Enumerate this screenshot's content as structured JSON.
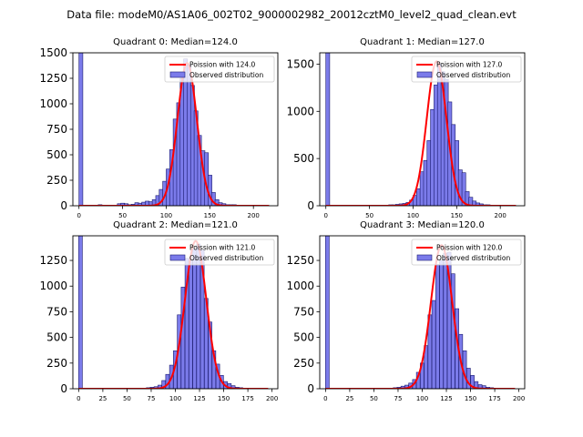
{
  "figure": {
    "suptitle": "Data file: modeM0/AS1A06_002T02_9000002982_20012cztM0_level2_quad_clean.evt"
  },
  "colors": {
    "bar_fill": "#7b7bea",
    "bar_edge": "#1a1a70",
    "curve": "#ff0000",
    "axis": "#000000"
  },
  "chart_data": [
    {
      "type": "bar",
      "title": "Quadrant 0: Median=124.0",
      "legend": [
        "Poission with 124.0",
        "Observed distribution"
      ],
      "legend_loc": "top-right",
      "xlim": [
        -7,
        228
      ],
      "ylim": [
        0,
        1500
      ],
      "xticks": [
        0,
        50,
        100,
        150,
        200
      ],
      "yticks": [
        0,
        250,
        500,
        750,
        1000,
        1250,
        1500
      ],
      "bin_width": 4.4,
      "mean": 124.0,
      "curve_peak": 1400,
      "bins_x": [
        0,
        22,
        44,
        48,
        52,
        56,
        60,
        64,
        68,
        72,
        76,
        80,
        84,
        88,
        92,
        96,
        100,
        104,
        108,
        112,
        116,
        120,
        124,
        128,
        132,
        136,
        140,
        144,
        148,
        152,
        156,
        160,
        164,
        168,
        172,
        176,
        180
      ],
      "bins_y": [
        1500,
        10,
        20,
        25,
        20,
        10,
        15,
        30,
        25,
        35,
        45,
        40,
        60,
        100,
        160,
        240,
        360,
        550,
        850,
        1010,
        1250,
        1440,
        1380,
        1180,
        930,
        690,
        540,
        520,
        300,
        130,
        60,
        30,
        20,
        10,
        10,
        10,
        5
      ]
    },
    {
      "type": "bar",
      "title": "Quadrant 1: Median=127.0",
      "legend": [
        "Poission with 127.0",
        "Observed distribution"
      ],
      "legend_loc": "top-right",
      "xlim": [
        -7,
        228
      ],
      "ylim": [
        0,
        1620
      ],
      "xticks": [
        0,
        50,
        100,
        150,
        200
      ],
      "yticks": [
        0,
        500,
        1000,
        1500
      ],
      "bin_width": 4.4,
      "mean": 127.0,
      "curve_peak": 1530,
      "bins_x": [
        0,
        72,
        76,
        80,
        84,
        88,
        92,
        96,
        100,
        104,
        108,
        112,
        116,
        120,
        124,
        128,
        132,
        136,
        140,
        144,
        148,
        152,
        156,
        160,
        164,
        168,
        172,
        176,
        180,
        184,
        188,
        192
      ],
      "bins_y": [
        1620,
        10,
        10,
        15,
        20,
        25,
        35,
        60,
        110,
        180,
        360,
        480,
        690,
        1020,
        1280,
        1500,
        1420,
        1340,
        1100,
        860,
        690,
        380,
        350,
        150,
        90,
        50,
        30,
        20,
        10,
        10,
        5,
        5
      ]
    },
    {
      "type": "bar",
      "title": "Quadrant 2: Median=121.0",
      "legend": [
        "Poission with 121.0",
        "Observed distribution"
      ],
      "legend_loc": "top-right",
      "xlim": [
        -6,
        206
      ],
      "ylim": [
        0,
        1490
      ],
      "xticks": [
        0,
        25,
        50,
        75,
        100,
        125,
        150,
        175,
        200
      ],
      "yticks": [
        0,
        250,
        500,
        750,
        1000,
        1250
      ],
      "bin_width": 3.8,
      "mean": 121.0,
      "curve_peak": 1440,
      "bins_x": [
        0,
        70,
        74,
        78,
        82,
        86,
        90,
        94,
        98,
        102,
        106,
        110,
        114,
        118,
        122,
        126,
        130,
        134,
        138,
        142,
        146,
        150,
        154,
        158,
        162,
        166,
        170
      ],
      "bins_y": [
        1490,
        10,
        15,
        20,
        35,
        80,
        140,
        230,
        370,
        720,
        990,
        1270,
        1250,
        1360,
        1410,
        1350,
        880,
        650,
        370,
        240,
        130,
        70,
        50,
        30,
        15,
        10,
        5
      ]
    },
    {
      "type": "bar",
      "title": "Quadrant 3: Median=120.0",
      "legend": [
        "Poission with 120.0",
        "Observed distribution"
      ],
      "legend_loc": "top-right",
      "xlim": [
        -6,
        206
      ],
      "ylim": [
        0,
        1490
      ],
      "xticks": [
        0,
        25,
        50,
        75,
        100,
        125,
        150,
        175,
        200
      ],
      "yticks": [
        0,
        250,
        500,
        750,
        1000,
        1250
      ],
      "bin_width": 3.8,
      "mean": 120.0,
      "curve_peak": 1400,
      "bins_x": [
        0,
        70,
        74,
        78,
        82,
        86,
        90,
        94,
        98,
        102,
        106,
        110,
        114,
        118,
        122,
        126,
        130,
        134,
        138,
        142,
        146,
        150,
        154,
        158,
        162,
        166,
        170,
        174
      ],
      "bins_y": [
        1490,
        10,
        15,
        25,
        35,
        55,
        90,
        160,
        250,
        420,
        720,
        860,
        1210,
        1250,
        1320,
        1330,
        1120,
        780,
        530,
        370,
        200,
        130,
        70,
        40,
        30,
        15,
        10,
        5
      ]
    }
  ]
}
